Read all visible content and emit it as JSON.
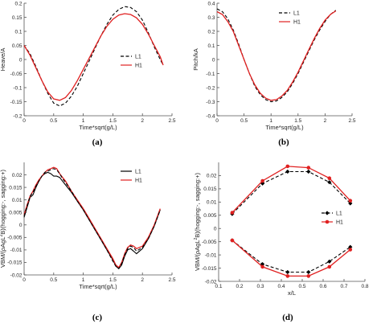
{
  "chart_data": [
    {
      "id": "a",
      "type": "line",
      "caption": "(a)",
      "xlabel": "Time*sqrt(g/L)",
      "ylabel": "Heave/A",
      "xlim": [
        0,
        2.5
      ],
      "ylim": [
        -0.2,
        0.2
      ],
      "xticks": [
        0,
        0.5,
        1,
        1.5,
        2,
        2.5
      ],
      "xtick_labels": [
        "0",
        "0.5",
        "1",
        "1.5",
        "2",
        "2.5"
      ],
      "yticks": [
        -0.2,
        -0.15,
        -0.1,
        -0.05,
        0,
        0.05,
        0.1,
        0.15,
        0.2
      ],
      "ytick_labels": [
        "-0.2",
        "-0.15",
        "-0.1",
        "-0.05",
        "0",
        "0.05",
        "0.1",
        "0.15",
        "0.2"
      ],
      "legend_position": "right",
      "series": [
        {
          "name": "L1",
          "color": "#000000",
          "dash": "dashed",
          "x": [
            0,
            0.1,
            0.2,
            0.3,
            0.4,
            0.5,
            0.6,
            0.7,
            0.8,
            0.9,
            1.0,
            1.1,
            1.2,
            1.3,
            1.4,
            1.5,
            1.6,
            1.7,
            1.8,
            1.9,
            2.0,
            2.1,
            2.2,
            2.3,
            2.35
          ],
          "y": [
            0.05,
            0.02,
            -0.025,
            -0.075,
            -0.12,
            -0.155,
            -0.165,
            -0.155,
            -0.13,
            -0.095,
            -0.05,
            -0.005,
            0.04,
            0.085,
            0.125,
            0.158,
            0.178,
            0.188,
            0.185,
            0.17,
            0.14,
            0.095,
            0.045,
            0.0,
            -0.02
          ]
        },
        {
          "name": "H1",
          "color": "#e02020",
          "dash": "solid",
          "x": [
            0,
            0.1,
            0.2,
            0.3,
            0.4,
            0.5,
            0.6,
            0.7,
            0.8,
            0.9,
            1.0,
            1.1,
            1.2,
            1.3,
            1.4,
            1.5,
            1.6,
            1.7,
            1.8,
            1.9,
            2.0,
            2.1,
            2.2,
            2.3,
            2.35
          ],
          "y": [
            0.05,
            0.015,
            -0.03,
            -0.075,
            -0.115,
            -0.14,
            -0.145,
            -0.135,
            -0.11,
            -0.075,
            -0.035,
            0.005,
            0.045,
            0.085,
            0.118,
            0.143,
            0.158,
            0.163,
            0.16,
            0.148,
            0.125,
            0.09,
            0.05,
            0.01,
            -0.02
          ]
        }
      ]
    },
    {
      "id": "b",
      "type": "line",
      "caption": "(b)",
      "xlabel": "Time*sqrt(g/L)",
      "ylabel": "Pitch/kA",
      "xlim": [
        0,
        2.5
      ],
      "ylim": [
        -0.4,
        0.4
      ],
      "xticks": [
        0,
        0.5,
        1,
        1.5,
        2,
        2.5
      ],
      "xtick_labels": [
        "0",
        "0.5",
        "1",
        "1.5",
        "2",
        "2.5"
      ],
      "yticks": [
        -0.4,
        -0.3,
        -0.2,
        -0.1,
        0,
        0.1,
        0.2,
        0.3,
        0.4
      ],
      "ytick_labels": [
        "-0.4",
        "-0.3",
        "-0.2",
        "-0.1",
        "0",
        "0.1",
        "0.2",
        "0.3",
        "0.4"
      ],
      "legend_position": "top-right",
      "series": [
        {
          "name": "L1",
          "color": "#000000",
          "dash": "dashed",
          "x": [
            0,
            0.1,
            0.2,
            0.3,
            0.4,
            0.5,
            0.6,
            0.7,
            0.8,
            0.9,
            1.0,
            1.1,
            1.2,
            1.3,
            1.4,
            1.5,
            1.6,
            1.7,
            1.8,
            1.9,
            2.0,
            2.1,
            2.2
          ],
          "y": [
            0.36,
            0.34,
            0.29,
            0.21,
            0.11,
            0.0,
            -0.1,
            -0.19,
            -0.25,
            -0.285,
            -0.3,
            -0.295,
            -0.27,
            -0.23,
            -0.17,
            -0.1,
            -0.02,
            0.06,
            0.14,
            0.21,
            0.27,
            0.32,
            0.35
          ]
        },
        {
          "name": "H1",
          "color": "#e02020",
          "dash": "solid",
          "x": [
            0,
            0.1,
            0.2,
            0.3,
            0.4,
            0.5,
            0.6,
            0.7,
            0.8,
            0.9,
            1.0,
            1.1,
            1.2,
            1.3,
            1.4,
            1.5,
            1.6,
            1.7,
            1.8,
            1.9,
            2.0,
            2.1,
            2.2
          ],
          "y": [
            0.34,
            0.32,
            0.27,
            0.2,
            0.1,
            0.0,
            -0.1,
            -0.18,
            -0.24,
            -0.275,
            -0.29,
            -0.285,
            -0.26,
            -0.22,
            -0.16,
            -0.09,
            -0.01,
            0.07,
            0.15,
            0.22,
            0.28,
            0.32,
            0.345
          ]
        }
      ]
    },
    {
      "id": "c",
      "type": "line",
      "caption": "(c)",
      "xlabel": "Time*sqrt(g/L)",
      "ylabel": "VBM/(ρAgL²B)(hogging:-, sagging:+)",
      "ylabel_parts": [
        "VBM/(ρAgL",
        "2",
        "B)(hogging:-, sagging:+)"
      ],
      "xlim": [
        0,
        2.5
      ],
      "ylim": [
        -0.02,
        0.025
      ],
      "xticks": [
        0,
        0.5,
        1,
        1.5,
        2,
        2.5
      ],
      "xtick_labels": [
        "0",
        "0.5",
        "1",
        "1.5",
        "2",
        "2.5"
      ],
      "yticks": [
        -0.02,
        -0.015,
        -0.01,
        -0.005,
        0,
        0.005,
        0.01,
        0.015,
        0.02
      ],
      "ytick_labels": [
        "-0.02",
        "-0.015",
        "-0.01",
        "-0.005",
        "0",
        "0.005",
        "0.01",
        "0.015",
        "0.02"
      ],
      "legend_position": "top-right",
      "series": [
        {
          "name": "L1",
          "color": "#000000",
          "dash": "solid",
          "x": [
            0,
            0.05,
            0.1,
            0.15,
            0.2,
            0.25,
            0.3,
            0.35,
            0.4,
            0.45,
            0.5,
            0.55,
            0.6,
            0.65,
            0.7,
            0.8,
            0.9,
            1.0,
            1.1,
            1.2,
            1.3,
            1.4,
            1.5,
            1.55,
            1.6,
            1.65,
            1.7,
            1.75,
            1.8,
            1.85,
            1.9,
            2.0,
            2.1,
            2.2,
            2.3
          ],
          "y": [
            0.003,
            0.007,
            0.011,
            0.012,
            0.015,
            0.0175,
            0.0195,
            0.0205,
            0.021,
            0.0205,
            0.0195,
            0.0195,
            0.019,
            0.0175,
            0.016,
            0.013,
            0.0095,
            0.006,
            0.002,
            -0.002,
            -0.006,
            -0.01,
            -0.014,
            -0.0165,
            -0.0175,
            -0.016,
            -0.0125,
            -0.01,
            -0.0095,
            -0.0105,
            -0.0115,
            -0.0095,
            -0.0055,
            -0.0005,
            0.006
          ]
        },
        {
          "name": "H1",
          "color": "#e02020",
          "dash": "solid",
          "x": [
            0,
            0.05,
            0.1,
            0.15,
            0.2,
            0.25,
            0.3,
            0.35,
            0.4,
            0.45,
            0.5,
            0.55,
            0.6,
            0.65,
            0.7,
            0.8,
            0.9,
            1.0,
            1.1,
            1.2,
            1.3,
            1.4,
            1.5,
            1.55,
            1.6,
            1.65,
            1.7,
            1.75,
            1.8,
            1.85,
            1.9,
            2.0,
            2.1,
            2.2,
            2.3
          ],
          "y": [
            0.004,
            0.008,
            0.0115,
            0.0135,
            0.016,
            0.018,
            0.0195,
            0.021,
            0.022,
            0.0225,
            0.023,
            0.0225,
            0.0205,
            0.019,
            0.0175,
            0.0135,
            0.01,
            0.0065,
            0.0025,
            -0.0015,
            -0.0055,
            -0.0095,
            -0.0135,
            -0.016,
            -0.017,
            -0.015,
            -0.0115,
            -0.009,
            -0.008,
            -0.0085,
            -0.0095,
            -0.0085,
            -0.005,
            0.0,
            0.0065
          ]
        },
        {
          "name": "L1",
          "color": "#000000",
          "dash": "dashed",
          "x": [
            0,
            0.05,
            0.1,
            0.15,
            0.2,
            0.25,
            0.3,
            0.35,
            0.4,
            0.45,
            0.5,
            0.55,
            0.6,
            0.65,
            0.7,
            0.8,
            0.9,
            1.0,
            1.1,
            1.2,
            1.3,
            1.4,
            1.5,
            1.55,
            1.6,
            1.65,
            1.7,
            1.75,
            1.8,
            1.85,
            1.9,
            2.0,
            2.1,
            2.2,
            2.3
          ],
          "y": [
            0.0035,
            0.0075,
            0.0115,
            0.013,
            0.0155,
            0.0175,
            0.0195,
            0.021,
            0.0215,
            0.022,
            0.0225,
            0.022,
            0.0205,
            0.0185,
            0.017,
            0.0135,
            0.0095,
            0.006,
            0.002,
            -0.002,
            -0.006,
            -0.01,
            -0.0145,
            -0.0165,
            -0.0175,
            -0.0155,
            -0.012,
            -0.0095,
            -0.0085,
            -0.009,
            -0.0105,
            -0.009,
            -0.0055,
            -0.0005,
            0.006
          ]
        }
      ]
    },
    {
      "id": "d",
      "type": "line",
      "caption": "(d)",
      "xlabel": "x/L",
      "ylabel": "VBM/(ρAgL²B)(hogging:-, sagging:+)",
      "ylabel_parts": [
        "VBM/(ρAgL",
        "2",
        "B)(hogging:-, sagging:+)"
      ],
      "xlim": [
        0.1,
        0.8
      ],
      "ylim": [
        -0.02,
        0.025
      ],
      "xticks": [
        0.1,
        0.2,
        0.3,
        0.4,
        0.5,
        0.6,
        0.7,
        0.8
      ],
      "xtick_labels": [
        "0.1",
        "0.2",
        "0.3",
        "0.4",
        "0.5",
        "0.6",
        "0.7",
        "0.8"
      ],
      "yticks": [
        -0.02,
        -0.015,
        -0.01,
        -0.005,
        0,
        0.005,
        0.01,
        0.015,
        0.02
      ],
      "ytick_labels": [
        "-0.02",
        "-0.015",
        "-0.01",
        "-0.005",
        "0",
        "0.005",
        "0.01",
        "0.015",
        "0.02"
      ],
      "legend_position": "center-right",
      "series": [
        {
          "name": "L1",
          "color": "#000000",
          "dash": "dashed",
          "marker": "diamond",
          "x": [
            0.165,
            0.31,
            0.43,
            0.53,
            0.63,
            0.73
          ],
          "y": [
            0.0055,
            0.017,
            0.0215,
            0.0215,
            0.0175,
            0.0095
          ]
        },
        {
          "name": "H1",
          "color": "#e02020",
          "dash": "solid",
          "marker": "dot",
          "x": [
            0.165,
            0.31,
            0.43,
            0.53,
            0.63,
            0.73
          ],
          "y": [
            0.006,
            0.018,
            0.0235,
            0.023,
            0.019,
            0.0105
          ]
        },
        {
          "name": "L1",
          "color": "#000000",
          "dash": "dashed",
          "marker": "diamond",
          "x": [
            0.165,
            0.31,
            0.43,
            0.53,
            0.63,
            0.73
          ],
          "y": [
            -0.0045,
            -0.0135,
            -0.0165,
            -0.0165,
            -0.0125,
            -0.007
          ]
        },
        {
          "name": "H1",
          "color": "#e02020",
          "dash": "solid",
          "marker": "dot",
          "x": [
            0.165,
            0.31,
            0.43,
            0.53,
            0.63,
            0.73
          ],
          "y": [
            -0.0045,
            -0.0145,
            -0.018,
            -0.018,
            -0.0145,
            -0.008
          ]
        }
      ],
      "legend": [
        {
          "name": "L1",
          "color": "#000000",
          "dash": "dashed",
          "marker": "diamond"
        },
        {
          "name": "H1",
          "color": "#e02020",
          "dash": "solid",
          "marker": "dot"
        }
      ]
    }
  ]
}
